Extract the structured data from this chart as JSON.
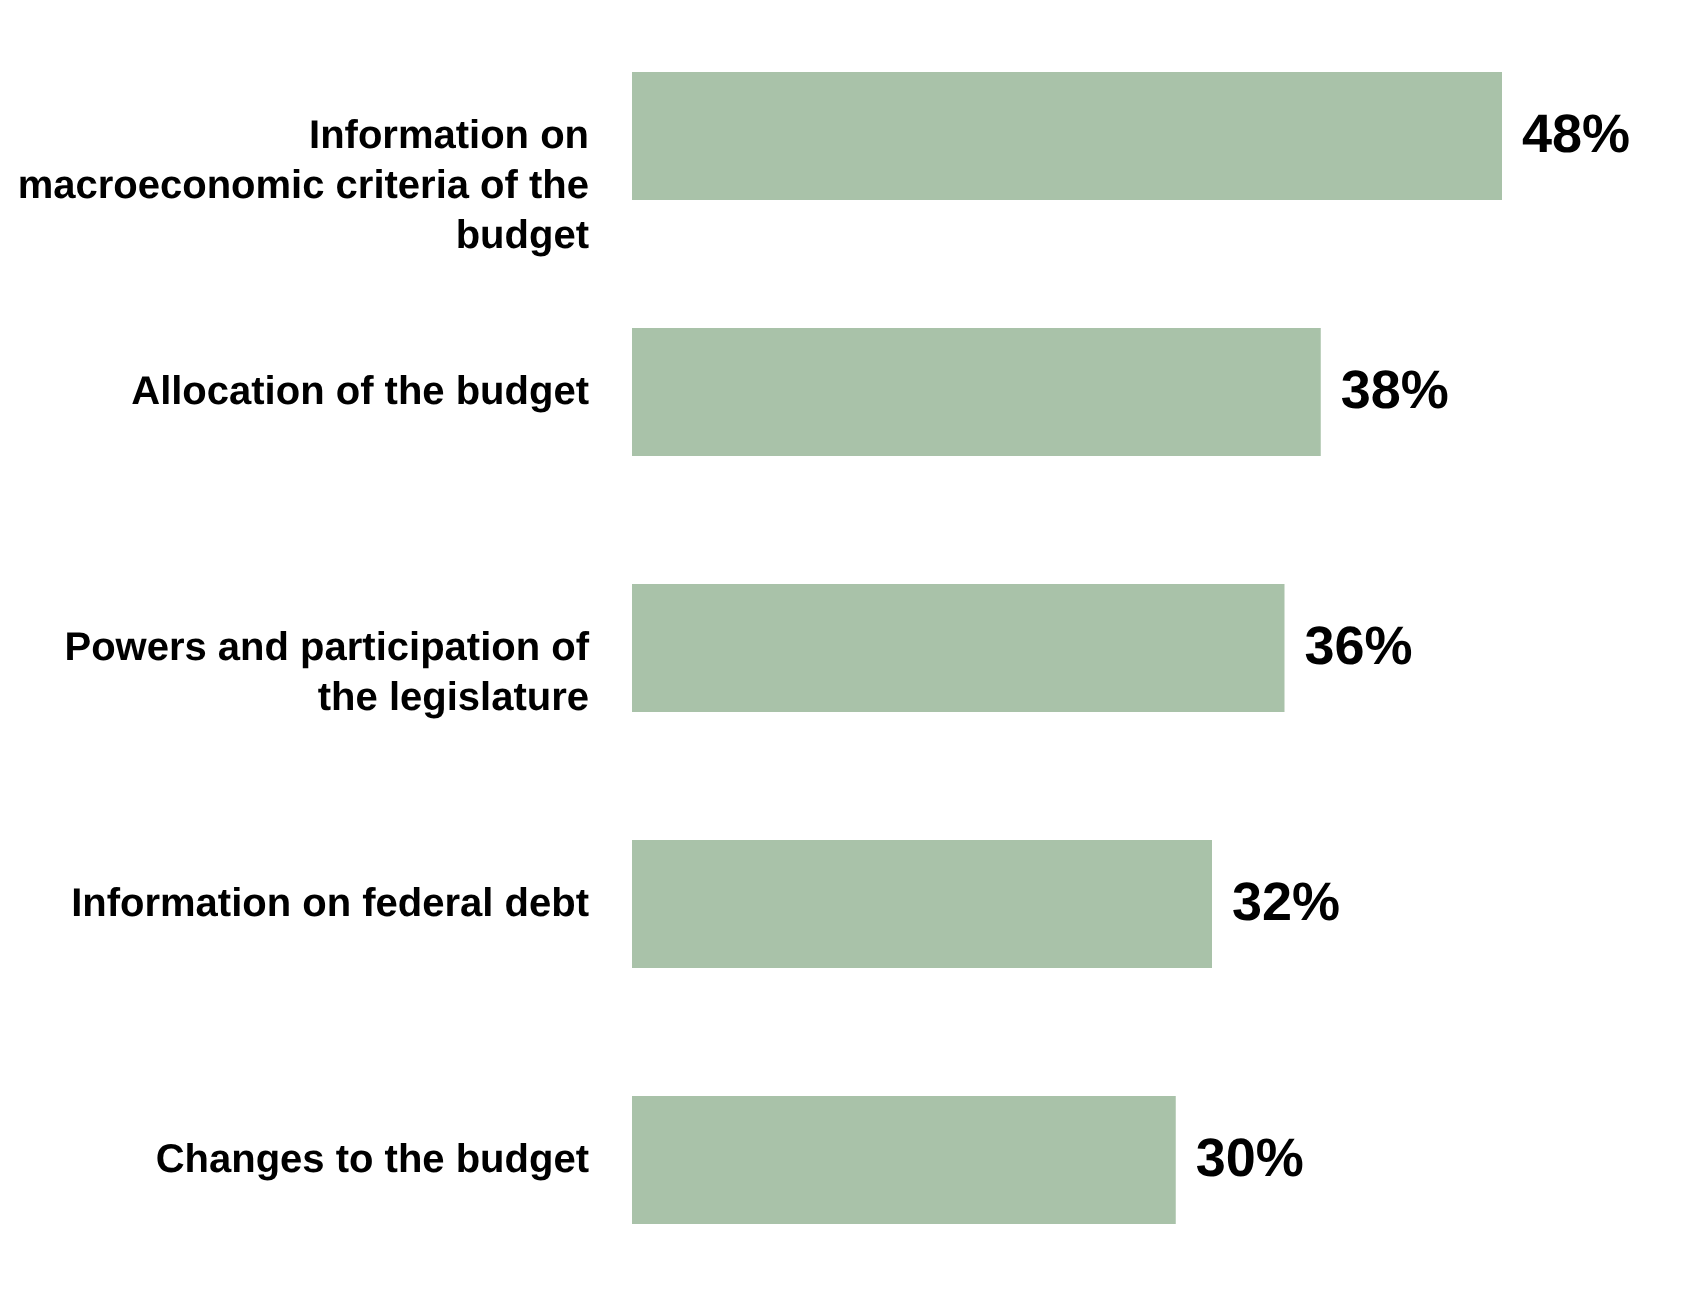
{
  "chart_data": {
    "type": "bar",
    "orientation": "horizontal",
    "categories": [
      "Information on macroeconomic criteria of the budget",
      "Allocation of the budget",
      "Powers and participation of the legislature",
      "Information on federal debt",
      "Changes to the budget"
    ],
    "values": [
      48,
      38,
      36,
      32,
      30
    ],
    "value_labels": [
      "48%",
      "38%",
      "36%",
      "32%",
      "30%"
    ],
    "color": "#a9c2a9"
  }
}
